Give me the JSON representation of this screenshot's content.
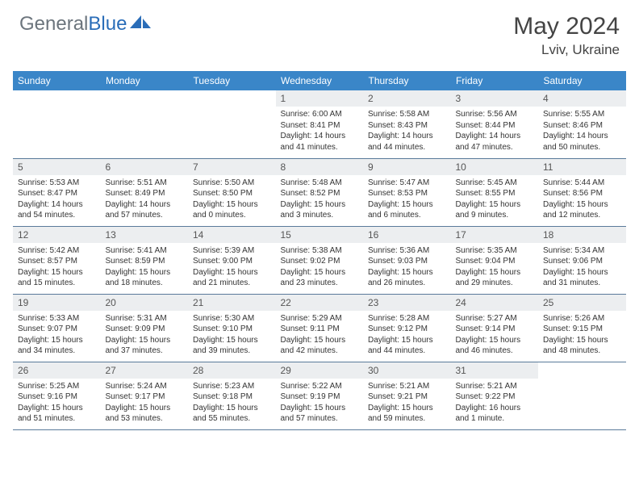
{
  "brand": {
    "part1": "General",
    "part2": "Blue"
  },
  "title": "May 2024",
  "location": "Lviv, Ukraine",
  "weekdays": [
    "Sunday",
    "Monday",
    "Tuesday",
    "Wednesday",
    "Thursday",
    "Friday",
    "Saturday"
  ],
  "colors": {
    "header_bg": "#3a86c8",
    "daynum_bg": "#eceef0",
    "row_border": "#5a7a9a",
    "logo_gray": "#6c757d",
    "logo_blue": "#2a6db8"
  },
  "grid": [
    [
      null,
      null,
      null,
      null,
      {
        "n": "1",
        "sr": "6:00 AM",
        "ss": "8:41 PM",
        "dl": "14 hours and 41 minutes."
      },
      {
        "n": "2",
        "sr": "5:58 AM",
        "ss": "8:43 PM",
        "dl": "14 hours and 44 minutes."
      },
      {
        "n": "3",
        "sr": "5:56 AM",
        "ss": "8:44 PM",
        "dl": "14 hours and 47 minutes."
      },
      {
        "n": "4",
        "sr": "5:55 AM",
        "ss": "8:46 PM",
        "dl": "14 hours and 50 minutes."
      }
    ],
    [
      {
        "n": "5",
        "sr": "5:53 AM",
        "ss": "8:47 PM",
        "dl": "14 hours and 54 minutes."
      },
      {
        "n": "6",
        "sr": "5:51 AM",
        "ss": "8:49 PM",
        "dl": "14 hours and 57 minutes."
      },
      {
        "n": "7",
        "sr": "5:50 AM",
        "ss": "8:50 PM",
        "dl": "15 hours and 0 minutes."
      },
      {
        "n": "8",
        "sr": "5:48 AM",
        "ss": "8:52 PM",
        "dl": "15 hours and 3 minutes."
      },
      {
        "n": "9",
        "sr": "5:47 AM",
        "ss": "8:53 PM",
        "dl": "15 hours and 6 minutes."
      },
      {
        "n": "10",
        "sr": "5:45 AM",
        "ss": "8:55 PM",
        "dl": "15 hours and 9 minutes."
      },
      {
        "n": "11",
        "sr": "5:44 AM",
        "ss": "8:56 PM",
        "dl": "15 hours and 12 minutes."
      }
    ],
    [
      {
        "n": "12",
        "sr": "5:42 AM",
        "ss": "8:57 PM",
        "dl": "15 hours and 15 minutes."
      },
      {
        "n": "13",
        "sr": "5:41 AM",
        "ss": "8:59 PM",
        "dl": "15 hours and 18 minutes."
      },
      {
        "n": "14",
        "sr": "5:39 AM",
        "ss": "9:00 PM",
        "dl": "15 hours and 21 minutes."
      },
      {
        "n": "15",
        "sr": "5:38 AM",
        "ss": "9:02 PM",
        "dl": "15 hours and 23 minutes."
      },
      {
        "n": "16",
        "sr": "5:36 AM",
        "ss": "9:03 PM",
        "dl": "15 hours and 26 minutes."
      },
      {
        "n": "17",
        "sr": "5:35 AM",
        "ss": "9:04 PM",
        "dl": "15 hours and 29 minutes."
      },
      {
        "n": "18",
        "sr": "5:34 AM",
        "ss": "9:06 PM",
        "dl": "15 hours and 31 minutes."
      }
    ],
    [
      {
        "n": "19",
        "sr": "5:33 AM",
        "ss": "9:07 PM",
        "dl": "15 hours and 34 minutes."
      },
      {
        "n": "20",
        "sr": "5:31 AM",
        "ss": "9:09 PM",
        "dl": "15 hours and 37 minutes."
      },
      {
        "n": "21",
        "sr": "5:30 AM",
        "ss": "9:10 PM",
        "dl": "15 hours and 39 minutes."
      },
      {
        "n": "22",
        "sr": "5:29 AM",
        "ss": "9:11 PM",
        "dl": "15 hours and 42 minutes."
      },
      {
        "n": "23",
        "sr": "5:28 AM",
        "ss": "9:12 PM",
        "dl": "15 hours and 44 minutes."
      },
      {
        "n": "24",
        "sr": "5:27 AM",
        "ss": "9:14 PM",
        "dl": "15 hours and 46 minutes."
      },
      {
        "n": "25",
        "sr": "5:26 AM",
        "ss": "9:15 PM",
        "dl": "15 hours and 48 minutes."
      }
    ],
    [
      {
        "n": "26",
        "sr": "5:25 AM",
        "ss": "9:16 PM",
        "dl": "15 hours and 51 minutes."
      },
      {
        "n": "27",
        "sr": "5:24 AM",
        "ss": "9:17 PM",
        "dl": "15 hours and 53 minutes."
      },
      {
        "n": "28",
        "sr": "5:23 AM",
        "ss": "9:18 PM",
        "dl": "15 hours and 55 minutes."
      },
      {
        "n": "29",
        "sr": "5:22 AM",
        "ss": "9:19 PM",
        "dl": "15 hours and 57 minutes."
      },
      {
        "n": "30",
        "sr": "5:21 AM",
        "ss": "9:21 PM",
        "dl": "15 hours and 59 minutes."
      },
      {
        "n": "31",
        "sr": "5:21 AM",
        "ss": "9:22 PM",
        "dl": "16 hours and 1 minute."
      },
      null
    ]
  ],
  "labels": {
    "sunrise": "Sunrise:",
    "sunset": "Sunset:",
    "daylight": "Daylight:"
  }
}
